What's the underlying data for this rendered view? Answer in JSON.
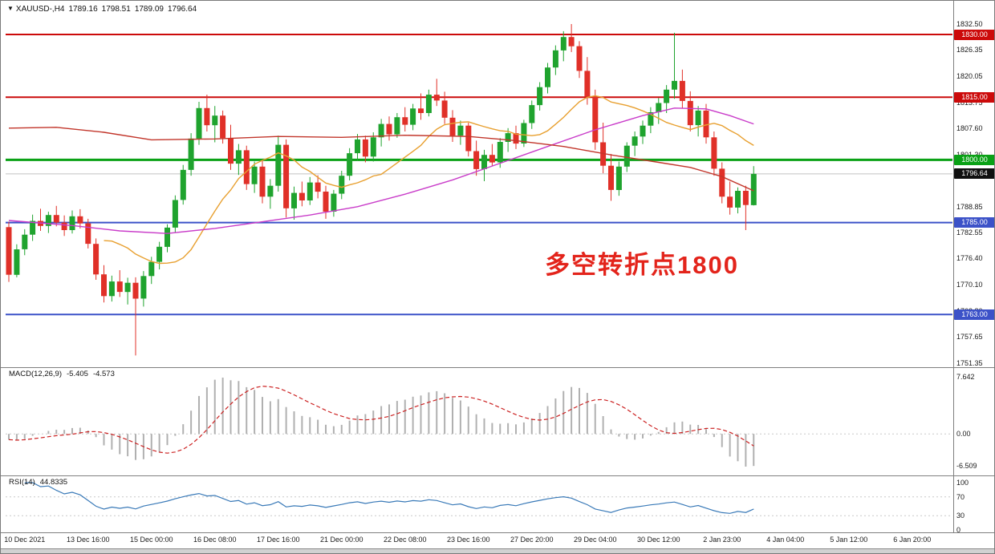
{
  "window": {
    "marker": "▼",
    "symbol": "XAUUSD-,H4",
    "ohlc_open": "1789.16",
    "ohlc_high": "1798.51",
    "ohlc_low": "1789.09",
    "ohlc_close": "1796.64"
  },
  "annotation": {
    "text": "多空转折点1800",
    "color": "#e3241b"
  },
  "chart_data": {
    "type": "candlestick",
    "symbol": "XAUUSD",
    "timeframe": "H4",
    "colors": {
      "up": "#1fa32e",
      "down": "#e03028",
      "macd_histogram": "#b0b0b0",
      "macd_signal": "#cc2222",
      "rsi_line": "#3a7ab8",
      "current_line": "#c0c0c0",
      "grid_dotted": "#c8c8c8"
    },
    "y_axis": {
      "ticks": [
        "1832.50",
        "1826.35",
        "1820.05",
        "1813.75",
        "1807.60",
        "1801.30",
        "1788.85",
        "1782.55",
        "1776.40",
        "1770.10",
        "1763.80",
        "1757.65",
        "1751.35"
      ]
    },
    "x_axis": {
      "labels": [
        {
          "text": "10 Dec 2021",
          "bar": 2
        },
        {
          "text": "13 Dec 16:00",
          "bar": 10
        },
        {
          "text": "15 Dec 00:00",
          "bar": 18
        },
        {
          "text": "16 Dec 08:00",
          "bar": 26
        },
        {
          "text": "17 Dec 16:00",
          "bar": 34
        },
        {
          "text": "21 Dec 00:00",
          "bar": 42
        },
        {
          "text": "22 Dec 08:00",
          "bar": 50
        },
        {
          "text": "23 Dec 16:00",
          "bar": 58
        },
        {
          "text": "27 Dec 20:00",
          "bar": 66
        },
        {
          "text": "29 Dec 04:00",
          "bar": 74
        },
        {
          "text": "30 Dec 12:00",
          "bar": 82
        },
        {
          "text": "2 Jan 23:00",
          "bar": 90
        },
        {
          "text": "4 Jan 04:00",
          "bar": 98
        },
        {
          "text": "5 Jan 12:00",
          "bar": 106
        },
        {
          "text": "6 Jan 20:00",
          "bar": 114
        }
      ]
    },
    "levels": [
      {
        "price": 1830.0,
        "label": "1830.00",
        "color": "#cc0a0a",
        "width": 2
      },
      {
        "price": 1815.0,
        "label": "1815.00",
        "color": "#cc0a0a",
        "width": 2
      },
      {
        "price": 1800.0,
        "label": "1800.00",
        "color": "#0aa116",
        "width": 3
      },
      {
        "price": 1785.0,
        "label": "1785.00",
        "color": "#3c52c8",
        "width": 2
      },
      {
        "price": 1763.0,
        "label": "1763.00",
        "color": "#3c52c8",
        "width": 2
      }
    ],
    "current_price": {
      "price": 1796.64,
      "label": "1796.64",
      "badge_color": "#101010"
    },
    "candles": [
      [
        1783.9,
        1785.2,
        1770.8,
        1772.5
      ],
      [
        1772.5,
        1779.8,
        1771.9,
        1778.6
      ],
      [
        1778.6,
        1783.4,
        1777.2,
        1782.1
      ],
      [
        1782.1,
        1786.9,
        1780.6,
        1785.4
      ],
      [
        1785.4,
        1788.3,
        1783.0,
        1784.2
      ],
      [
        1784.2,
        1787.6,
        1782.5,
        1786.8
      ],
      [
        1786.8,
        1789.0,
        1784.1,
        1785.0
      ],
      [
        1785.0,
        1786.7,
        1781.8,
        1783.2
      ],
      [
        1783.2,
        1787.9,
        1782.4,
        1786.5
      ],
      [
        1786.5,
        1788.2,
        1783.6,
        1784.8
      ],
      [
        1784.8,
        1785.9,
        1778.8,
        1779.9
      ],
      [
        1779.9,
        1781.2,
        1771.3,
        1772.6
      ],
      [
        1772.6,
        1774.8,
        1765.9,
        1767.4
      ],
      [
        1767.4,
        1772.3,
        1766.1,
        1770.9
      ],
      [
        1770.9,
        1773.6,
        1767.2,
        1768.4
      ],
      [
        1768.4,
        1771.8,
        1765.4,
        1770.6
      ],
      [
        1770.6,
        1771.9,
        1753.2,
        1766.8
      ],
      [
        1766.8,
        1773.4,
        1764.9,
        1772.2
      ],
      [
        1772.2,
        1776.8,
        1770.3,
        1775.6
      ],
      [
        1775.6,
        1780.4,
        1773.8,
        1779.2
      ],
      [
        1779.2,
        1784.6,
        1777.9,
        1783.8
      ],
      [
        1783.8,
        1791.5,
        1782.6,
        1790.4
      ],
      [
        1790.4,
        1798.8,
        1789.3,
        1797.6
      ],
      [
        1797.6,
        1806.4,
        1796.2,
        1805.1
      ],
      [
        1805.1,
        1813.9,
        1803.6,
        1812.4
      ],
      [
        1812.4,
        1815.6,
        1806.8,
        1808.3
      ],
      [
        1808.3,
        1812.9,
        1804.2,
        1810.6
      ],
      [
        1810.6,
        1811.8,
        1803.9,
        1805.2
      ],
      [
        1805.2,
        1808.4,
        1797.6,
        1799.1
      ],
      [
        1799.1,
        1803.8,
        1796.4,
        1802.3
      ],
      [
        1802.3,
        1803.4,
        1792.8,
        1794.2
      ],
      [
        1794.2,
        1799.6,
        1792.1,
        1798.4
      ],
      [
        1798.4,
        1799.8,
        1789.6,
        1791.2
      ],
      [
        1791.2,
        1795.4,
        1788.3,
        1793.8
      ],
      [
        1793.8,
        1805.8,
        1792.4,
        1803.6
      ],
      [
        1803.6,
        1804.9,
        1786.2,
        1788.4
      ],
      [
        1788.4,
        1793.6,
        1785.7,
        1792.1
      ],
      [
        1792.1,
        1794.8,
        1788.9,
        1790.3
      ],
      [
        1790.3,
        1795.9,
        1789.2,
        1794.6
      ],
      [
        1794.6,
        1796.3,
        1790.8,
        1792.4
      ],
      [
        1792.4,
        1793.8,
        1785.9,
        1787.6
      ],
      [
        1787.6,
        1792.8,
        1786.4,
        1791.9
      ],
      [
        1791.9,
        1797.4,
        1790.6,
        1796.2
      ],
      [
        1796.2,
        1802.8,
        1795.1,
        1801.6
      ],
      [
        1801.6,
        1806.2,
        1799.8,
        1804.9
      ],
      [
        1804.9,
        1805.8,
        1799.4,
        1800.8
      ],
      [
        1800.8,
        1806.6,
        1799.6,
        1805.4
      ],
      [
        1805.4,
        1809.8,
        1803.2,
        1808.6
      ],
      [
        1808.6,
        1810.4,
        1804.6,
        1806.1
      ],
      [
        1806.1,
        1811.2,
        1805.3,
        1810.2
      ],
      [
        1810.2,
        1812.6,
        1806.8,
        1808.4
      ],
      [
        1808.4,
        1813.4,
        1807.1,
        1812.3
      ],
      [
        1812.3,
        1815.9,
        1809.6,
        1811.2
      ],
      [
        1811.2,
        1816.8,
        1810.4,
        1815.6
      ],
      [
        1815.6,
        1819.4,
        1812.9,
        1814.2
      ],
      [
        1814.2,
        1816.3,
        1808.6,
        1810.1
      ],
      [
        1810.1,
        1811.9,
        1804.3,
        1805.8
      ],
      [
        1805.8,
        1809.4,
        1803.6,
        1808.2
      ],
      [
        1808.2,
        1808.9,
        1800.8,
        1802.1
      ],
      [
        1802.1,
        1804.6,
        1796.2,
        1797.8
      ],
      [
        1797.8,
        1802.4,
        1794.9,
        1801.2
      ],
      [
        1801.2,
        1803.8,
        1798.6,
        1799.4
      ],
      [
        1799.4,
        1805.2,
        1798.1,
        1804.3
      ],
      [
        1804.3,
        1807.6,
        1801.9,
        1806.4
      ],
      [
        1806.4,
        1808.2,
        1802.6,
        1803.9
      ],
      [
        1803.9,
        1809.6,
        1803.1,
        1808.8
      ],
      [
        1808.8,
        1814.2,
        1807.4,
        1813.1
      ],
      [
        1813.1,
        1818.6,
        1811.8,
        1817.4
      ],
      [
        1817.4,
        1823.2,
        1815.9,
        1822.1
      ],
      [
        1822.1,
        1827.4,
        1820.3,
        1826.2
      ],
      [
        1826.2,
        1830.8,
        1823.6,
        1829.4
      ],
      [
        1829.4,
        1832.5,
        1825.8,
        1827.2
      ],
      [
        1827.2,
        1828.4,
        1819.6,
        1821.3
      ],
      [
        1821.3,
        1824.6,
        1813.2,
        1815.1
      ],
      [
        1815.1,
        1816.8,
        1802.4,
        1804.2
      ],
      [
        1804.2,
        1808.9,
        1796.8,
        1798.6
      ],
      [
        1798.6,
        1801.4,
        1790.2,
        1792.8
      ],
      [
        1792.8,
        1799.6,
        1791.4,
        1798.4
      ],
      [
        1798.4,
        1804.2,
        1797.1,
        1803.4
      ],
      [
        1803.4,
        1806.8,
        1800.9,
        1805.6
      ],
      [
        1805.6,
        1809.4,
        1803.8,
        1808.2
      ],
      [
        1808.2,
        1812.6,
        1806.4,
        1811.4
      ],
      [
        1811.4,
        1814.8,
        1808.6,
        1813.6
      ],
      [
        1813.6,
        1817.9,
        1811.2,
        1816.8
      ],
      [
        1816.8,
        1830.4,
        1814.6,
        1818.9
      ],
      [
        1818.9,
        1821.6,
        1812.3,
        1814.1
      ],
      [
        1814.1,
        1816.4,
        1806.8,
        1808.3
      ],
      [
        1808.3,
        1812.9,
        1805.6,
        1811.8
      ],
      [
        1811.8,
        1813.4,
        1803.9,
        1805.4
      ],
      [
        1805.4,
        1806.8,
        1796.2,
        1797.9
      ],
      [
        1797.9,
        1799.4,
        1789.6,
        1791.2
      ],
      [
        1791.2,
        1794.8,
        1786.9,
        1788.6
      ],
      [
        1788.6,
        1793.4,
        1787.2,
        1792.6
      ],
      [
        1792.6,
        1793.8,
        1783.2,
        1789.2
      ],
      [
        1789.16,
        1798.51,
        1789.09,
        1796.64
      ]
    ],
    "ma_fast": {
      "name": "ma-fast-line",
      "type": "sma",
      "period": 13,
      "color": "#e8a030"
    },
    "ma_lines": [
      {
        "name": "ma-medium-line",
        "color": "#c93cc9",
        "points": [
          [
            0,
            1785.5
          ],
          [
            8,
            1784.3
          ],
          [
            14,
            1783.0
          ],
          [
            20,
            1782.4
          ],
          [
            26,
            1783.6
          ],
          [
            32,
            1785.2
          ],
          [
            38,
            1786.8
          ],
          [
            44,
            1788.8
          ],
          [
            50,
            1791.8
          ],
          [
            56,
            1795.2
          ],
          [
            62,
            1799.2
          ],
          [
            68,
            1803.2
          ],
          [
            74,
            1807.2
          ],
          [
            80,
            1810.6
          ],
          [
            84,
            1812.4
          ],
          [
            88,
            1812.2
          ],
          [
            91,
            1810.6
          ],
          [
            94,
            1808.6
          ]
        ]
      },
      {
        "name": "ma-slow-line",
        "color": "#c2362b",
        "points": [
          [
            0,
            1807.6
          ],
          [
            6,
            1807.8
          ],
          [
            12,
            1806.6
          ],
          [
            18,
            1804.8
          ],
          [
            26,
            1805.0
          ],
          [
            34,
            1805.6
          ],
          [
            42,
            1805.4
          ],
          [
            50,
            1805.9
          ],
          [
            58,
            1805.6
          ],
          [
            64,
            1804.6
          ],
          [
            70,
            1803.2
          ],
          [
            76,
            1801.2
          ],
          [
            82,
            1799.4
          ],
          [
            86,
            1798.2
          ],
          [
            90,
            1796.0
          ],
          [
            94,
            1792.6
          ]
        ]
      }
    ],
    "indicators": {
      "macd": {
        "label": "MACD(12,26,9)",
        "value_main": "-5.405",
        "value_signal": "-4.573",
        "params": [
          12,
          26,
          9
        ],
        "axis": {
          "top": "7.642",
          "zero": "0.00",
          "bottom": "-6.509"
        }
      },
      "rsi": {
        "label": "RSI(14)",
        "value": "44.8335",
        "period": 14,
        "levels": [
          70,
          30
        ],
        "axis": [
          "100",
          "70",
          "30",
          "0"
        ]
      }
    }
  }
}
